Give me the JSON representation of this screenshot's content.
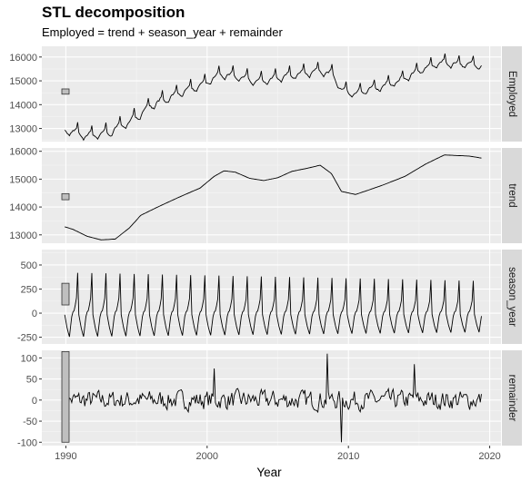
{
  "chart_data": {
    "type": "line",
    "title": "STL decomposition",
    "subtitle": "Employed = trend + season_year + remainder",
    "xlabel": "Year",
    "xlim": [
      1988.3,
      2020.8
    ],
    "x_ticks": [
      1990,
      2000,
      2010,
      2020
    ],
    "x_start": 1989.92,
    "x_step": 0.08333,
    "grid": true,
    "panel_background": "#ebebeb",
    "strip_background": "#d9d9d9",
    "line_color": "#000000",
    "scale_bar_color": "#bfbfbf",
    "panels": [
      {
        "name": "Employed",
        "ylim": [
          12450,
          16450
        ],
        "y_ticks": [
          13000,
          14000,
          15000,
          16000
        ],
        "scale_bar": [
          14440,
          14660
        ],
        "series_model": {
          "base_anchors": [
            [
              1989.92,
              12980
            ],
            [
              1991.5,
              12720
            ],
            [
              1993.0,
              12870
            ],
            [
              1994.5,
              13300
            ],
            [
              1996.0,
              14000
            ],
            [
              1998.0,
              14500
            ],
            [
              1999.5,
              14830
            ],
            [
              2001.0,
              15310
            ],
            [
              2002.5,
              15180
            ],
            [
              2003.5,
              15020
            ],
            [
              2005.0,
              15150
            ],
            [
              2006.5,
              15320
            ],
            [
              2008.0,
              15440
            ],
            [
              2008.9,
              15300
            ],
            [
              2009.5,
              14650
            ],
            [
              2010.5,
              14500
            ],
            [
              2012.0,
              14750
            ],
            [
              2013.5,
              15000
            ],
            [
              2015.0,
              15450
            ],
            [
              2016.5,
              15800
            ],
            [
              2017.5,
              15750
            ],
            [
              2019.5,
              15700
            ]
          ],
          "season_anchors": [
            [
              1989.9,
              0
            ],
            [
              1990.08,
              -150
            ],
            [
              1990.25,
              -250
            ],
            [
              1990.45,
              0
            ],
            [
              1990.6,
              30
            ],
            [
              1990.75,
              150
            ],
            [
              1990.9,
              600
            ],
            [
              1991.0,
              0
            ]
          ],
          "season_amplitude": [
            1.0,
            0.8
          ],
          "noise_amplitude": 40
        }
      },
      {
        "name": "trend",
        "ylim": [
          12700,
          16120
        ],
        "y_ticks": [
          13000,
          14000,
          15000,
          16000
        ],
        "scale_bar": [
          14260,
          14480
        ],
        "series": [
          [
            1989.92,
            13290
          ],
          [
            1990.5,
            13200
          ],
          [
            1991.5,
            12950
          ],
          [
            1992.5,
            12820
          ],
          [
            1993.5,
            12850
          ],
          [
            1994.5,
            13250
          ],
          [
            1995.3,
            13700
          ],
          [
            1996.5,
            14000
          ],
          [
            1998.0,
            14350
          ],
          [
            1999.5,
            14680
          ],
          [
            2000.5,
            15100
          ],
          [
            2001.2,
            15300
          ],
          [
            2002.0,
            15250
          ],
          [
            2003.0,
            15030
          ],
          [
            2004.0,
            14950
          ],
          [
            2005.0,
            15050
          ],
          [
            2006.0,
            15280
          ],
          [
            2007.0,
            15380
          ],
          [
            2008.0,
            15500
          ],
          [
            2008.8,
            15200
          ],
          [
            2009.5,
            14560
          ],
          [
            2010.5,
            14450
          ],
          [
            2011.5,
            14620
          ],
          [
            2012.5,
            14800
          ],
          [
            2014.0,
            15100
          ],
          [
            2015.5,
            15550
          ],
          [
            2016.8,
            15870
          ],
          [
            2017.5,
            15850
          ],
          [
            2018.5,
            15830
          ],
          [
            2019.5,
            15750
          ]
        ]
      },
      {
        "name": "season_year",
        "ylim": [
          -320,
          660
        ],
        "y_ticks": [
          -250,
          0,
          250,
          500
        ],
        "scale_bar": [
          85,
          310
        ],
        "series_model": {
          "season_anchors": [
            [
              1989.9,
              0
            ],
            [
              1990.08,
              -150
            ],
            [
              1990.25,
              -250
            ],
            [
              1990.45,
              0
            ],
            [
              1990.6,
              30
            ],
            [
              1990.75,
              150
            ],
            [
              1990.9,
              620
            ],
            [
              1991.0,
              0
            ]
          ],
          "season_amplitude": [
            1.0,
            0.8
          ]
        }
      },
      {
        "name": "remainder",
        "ylim": [
          -108,
          118
        ],
        "y_ticks": [
          -100,
          -50,
          0,
          50,
          100
        ],
        "scale_bar": [
          -100,
          115
        ],
        "series_model": {
          "noise_amplitude": 25,
          "spikes": [
            [
              2008.5,
              110
            ],
            [
              2009.5,
              -100
            ],
            [
              2000.5,
              75
            ],
            [
              2014.7,
              85
            ]
          ]
        }
      }
    ]
  }
}
